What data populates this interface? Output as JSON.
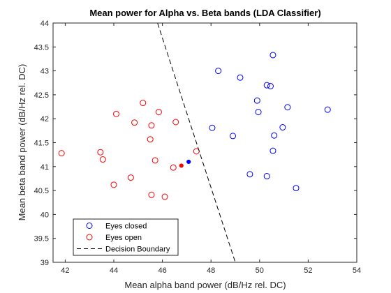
{
  "chart_data": {
    "type": "scatter",
    "title": "Mean power for Alpha vs. Beta bands (LDA Classifier)",
    "xlabel": "Mean alpha band power (dB/Hz rel. DC)",
    "ylabel": "Mean beta band power (dB/Hz rel. DC)",
    "xlim": [
      41.5,
      54
    ],
    "ylim": [
      39,
      44
    ],
    "xticks": [
      42,
      44,
      46,
      48,
      50,
      52,
      54
    ],
    "yticks": [
      39,
      39.5,
      40,
      40.5,
      41,
      41.5,
      42,
      42.5,
      43,
      43.5,
      44
    ],
    "xtick_labels": [
      "42",
      "44",
      "46",
      "48",
      "50",
      "52",
      "54"
    ],
    "ytick_labels": [
      "39",
      "39.5",
      "40",
      "40.5",
      "41",
      "41.5",
      "42",
      "42.5",
      "43",
      "43.5",
      "44"
    ],
    "grid": false,
    "legend_position": "bottom-left",
    "series": [
      {
        "name": "Eyes closed",
        "color": "#0000ff",
        "marker": "circle-open",
        "points": [
          [
            48.3,
            43.0
          ],
          [
            49.2,
            42.86
          ],
          [
            50.55,
            43.33
          ],
          [
            50.3,
            42.7
          ],
          [
            50.45,
            42.68
          ],
          [
            49.9,
            42.38
          ],
          [
            49.95,
            42.14
          ],
          [
            51.15,
            42.24
          ],
          [
            52.8,
            42.19
          ],
          [
            48.05,
            41.81
          ],
          [
            48.9,
            41.64
          ],
          [
            50.6,
            41.65
          ],
          [
            50.95,
            41.82
          ],
          [
            50.55,
            41.33
          ],
          [
            49.6,
            40.84
          ],
          [
            50.3,
            40.8
          ],
          [
            51.5,
            40.55
          ]
        ]
      },
      {
        "name": "Eyes open",
        "color": "#ff0000",
        "marker": "circle-open",
        "points": [
          [
            41.85,
            41.28
          ],
          [
            43.45,
            41.3
          ],
          [
            43.55,
            41.15
          ],
          [
            44.1,
            42.1
          ],
          [
            44.85,
            41.92
          ],
          [
            45.2,
            42.33
          ],
          [
            45.55,
            41.86
          ],
          [
            45.85,
            42.14
          ],
          [
            45.5,
            41.57
          ],
          [
            46.55,
            41.93
          ],
          [
            44.0,
            40.62
          ],
          [
            44.7,
            40.77
          ],
          [
            45.7,
            41.13
          ],
          [
            46.45,
            40.98
          ],
          [
            47.4,
            41.32
          ],
          [
            45.55,
            40.41
          ],
          [
            46.1,
            40.37
          ]
        ]
      },
      {
        "name": "Decision Boundary",
        "color": "#000000",
        "marker": "dashed-line",
        "points": [
          [
            45.8,
            44.0
          ],
          [
            49.0,
            39.0
          ]
        ]
      }
    ],
    "highlighted_points": [
      {
        "x": 46.78,
        "y": 41.02,
        "color": "#ff0000"
      },
      {
        "x": 47.08,
        "y": 41.1,
        "color": "#0000ff"
      }
    ],
    "legend": [
      {
        "label": "Eyes closed",
        "color": "#0000ff",
        "marker": "circle"
      },
      {
        "label": "Eyes open",
        "color": "#ff0000",
        "marker": "circle"
      },
      {
        "label": "Decision Boundary",
        "color": "#000000",
        "marker": "dashed-line"
      }
    ]
  }
}
